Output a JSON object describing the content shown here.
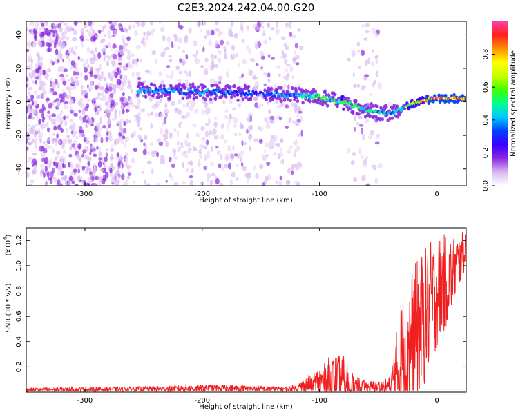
{
  "title": "C2E3.2024.242.04.00.G20",
  "chart_data": [
    {
      "type": "heatmap",
      "name": "spectrogram",
      "xlabel": "Height of straight line (km)",
      "ylabel": "Frequency (Hz)",
      "xlim": [
        -350,
        25
      ],
      "ylim": [
        -50,
        48
      ],
      "xticks": [
        -300,
        -200,
        -100,
        0
      ],
      "yticks": [
        -40,
        -20,
        0,
        20,
        40
      ],
      "tick_labels_x": [
        "-300",
        "-200",
        "-100",
        "0"
      ],
      "tick_labels_y": [
        "-40",
        "-20",
        "0",
        "20",
        "40"
      ],
      "colorbar": {
        "label": "Normalized spectral amplitude",
        "range": [
          0,
          1
        ],
        "ticks": [
          0.0,
          0.2,
          0.4,
          0.6,
          0.8
        ],
        "tick_labels": [
          "0.0",
          "0.2",
          "0.4",
          "0.6",
          "0.8"
        ],
        "colors": [
          "#ffffff",
          "#d8b8f0",
          "#8a2be2",
          "#3a00ff",
          "#0040ff",
          "#00c8ff",
          "#00ff90",
          "#40ff00",
          "#c8ff00",
          "#ffff00",
          "#ff9000",
          "#ff2020",
          "#ff40a0"
        ]
      },
      "ridge": {
        "x": [
          -255,
          -200,
          -150,
          -120,
          -100,
          -80,
          -60,
          -40,
          -30,
          -20,
          -10,
          0,
          25
        ],
        "y": [
          7,
          6,
          5,
          4,
          3,
          0,
          -5,
          -7,
          -4,
          -1,
          1,
          2,
          2
        ],
        "amplitude": [
          0.45,
          0.4,
          0.35,
          0.45,
          0.55,
          0.6,
          0.5,
          0.45,
          0.55,
          0.7,
          0.85,
          0.95,
          0.9
        ]
      },
      "noise_regions": [
        {
          "x": [
            -350,
            -262
          ],
          "density": "high"
        },
        {
          "x": [
            -262,
            -130
          ],
          "density": "medium"
        },
        {
          "x": [
            -130,
            -115
          ],
          "density": "low"
        },
        {
          "x": [
            -75,
            -48
          ],
          "density": "low"
        }
      ]
    },
    {
      "type": "line",
      "name": "snr",
      "xlabel": "Height of straight line (km)",
      "ylabel": "SNR (10 * v/v)",
      "ylabel_scale": "(x10",
      "ylabel_scale_exp": "4",
      "xlim": [
        -350,
        25
      ],
      "ylim": [
        0,
        1.3
      ],
      "xticks": [
        -300,
        -200,
        -100,
        0
      ],
      "yticks": [
        0.2,
        0.4,
        0.6,
        0.8,
        1.0,
        1.2
      ],
      "tick_labels_x": [
        "-300",
        "-200",
        "-100",
        "0"
      ],
      "tick_labels_y": [
        "0.2",
        "0.4",
        "0.6",
        "0.8",
        "1.0",
        "1.2"
      ],
      "line_color": "#f02020",
      "envelope": {
        "x": [
          -350,
          -250,
          -200,
          -180,
          -130,
          -120,
          -110,
          -100,
          -90,
          -80,
          -70,
          -60,
          -50,
          -40,
          -35,
          -30,
          -20,
          -10,
          0,
          10,
          20,
          25
        ],
        "base": [
          0.02,
          0.025,
          0.03,
          0.03,
          0.025,
          0.03,
          0.06,
          0.08,
          0.1,
          0.1,
          0.05,
          0.04,
          0.04,
          0.05,
          0.15,
          0.3,
          0.45,
          0.6,
          0.8,
          0.9,
          1.05,
          1.15
        ],
        "spread": [
          0.015,
          0.02,
          0.03,
          0.03,
          0.02,
          0.03,
          0.07,
          0.13,
          0.2,
          0.2,
          0.08,
          0.05,
          0.05,
          0.08,
          0.3,
          0.5,
          0.55,
          0.55,
          0.45,
          0.35,
          0.2,
          0.15
        ]
      }
    }
  ]
}
